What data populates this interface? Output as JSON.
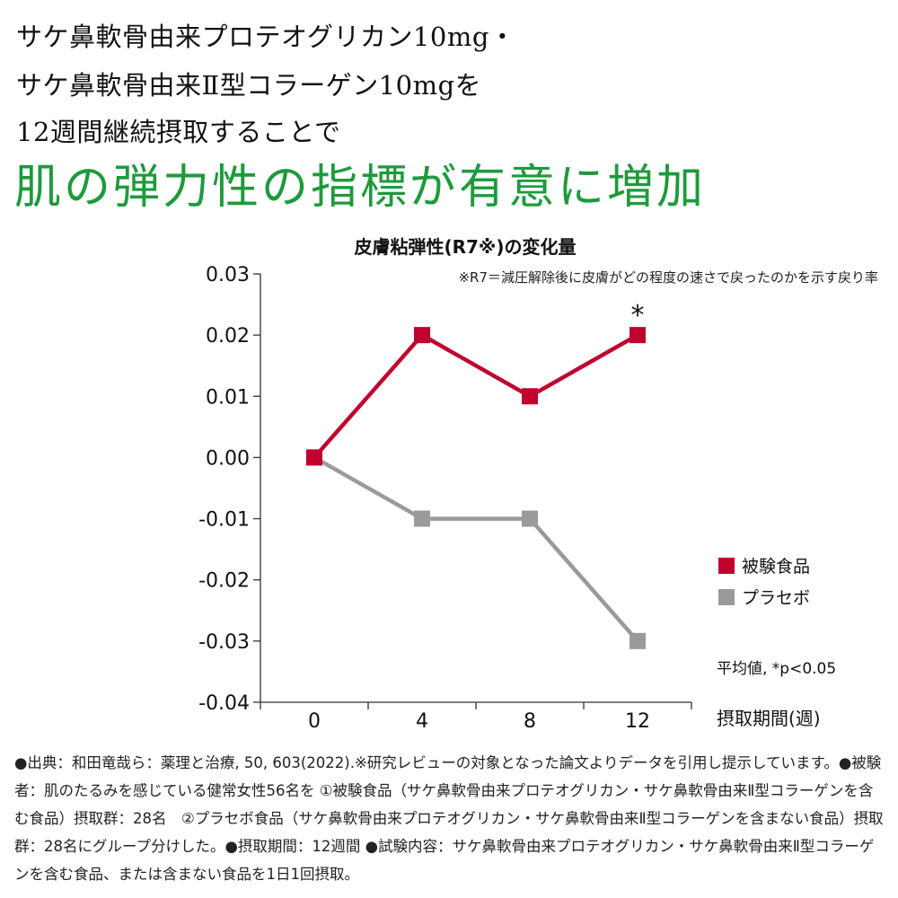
{
  "intro": {
    "line1": "サケ鼻軟骨由来プロテオグリカン10mg・",
    "line2": "サケ鼻軟骨由来Ⅱ型コラーゲン10mgを",
    "line3": "12週間継続摂取することで"
  },
  "headline": "肌の弾力性の指標が有意に増加",
  "chart_data": {
    "type": "line",
    "title": "皮膚粘弾性(R7※)の変化量",
    "subtitle": "※R7＝減圧解除後に皮膚がどの程度の速さで戻ったのかを示す戻り率",
    "xlabel": "摂取期間(週)",
    "ylabel": "",
    "x": [
      0,
      4,
      8,
      12
    ],
    "x_tick_labels": [
      "0",
      "4",
      "8",
      "12"
    ],
    "ylim": [
      -0.04,
      0.03
    ],
    "y_ticks": [
      0.03,
      0.02,
      0.01,
      0.0,
      -0.01,
      -0.02,
      -0.03,
      -0.04
    ],
    "y_tick_labels": [
      "0.03",
      "0.02",
      "0.01",
      "0.00",
      "-0.01",
      "-0.02",
      "-0.03",
      "-0.04"
    ],
    "series": [
      {
        "name": "被験食品",
        "color": "#c0002f",
        "values": [
          0.0,
          0.02,
          0.01,
          0.02
        ]
      },
      {
        "name": "プラセボ",
        "color": "#9a9a9a",
        "values": [
          0.0,
          -0.01,
          -0.01,
          -0.03
        ]
      }
    ],
    "annotations": [
      {
        "text": "*",
        "x": 12,
        "series": "被験食品"
      }
    ],
    "note": "平均値, *p<0.05",
    "legend_position": "right",
    "grid": false
  },
  "footnote": "●出典：和田竜哉ら：薬理と治療, 50, 603(2022).※研究レビューの対象となった論文よりデータを引用し提示しています。●被験者：肌のたるみを感じている健常女性56名を ①被験食品（サケ鼻軟骨由来プロテオグリカン・サケ鼻軟骨由来Ⅱ型コラーゲンを含む食品）摂取群：28名　②プラセボ食品（サケ鼻軟骨由来プロテオグリカン・サケ鼻軟骨由来Ⅱ型コラーゲンを含まない食品）摂取群：28名にグループ分けした。●摂取期間：12週間 ●試験内容：サケ鼻軟骨由来プロテオグリカン・サケ鼻軟骨由来Ⅱ型コラーゲンを含む食品、または含まない食品を1日1回摂取。"
}
